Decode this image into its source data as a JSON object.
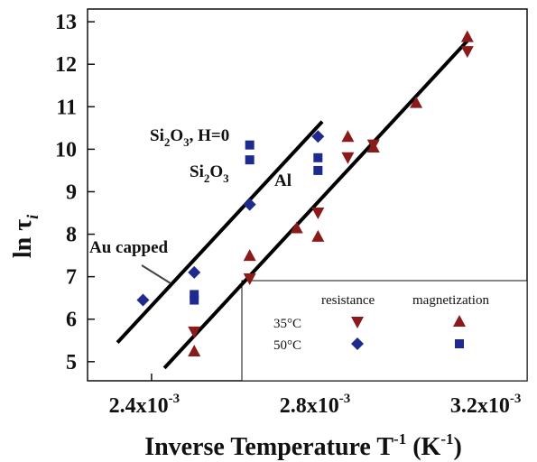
{
  "chart_data": {
    "type": "scatter",
    "xlabel": "Inverse Temperature T",
    "xlabel_sup": "-1",
    "xlabel_unit": "(K",
    "xlabel_unit_sup": "-1",
    "xlabel_unit_close": ")",
    "ylabel": "ln τ",
    "ylabel_sub": "i",
    "xlim": [
      0.00225,
      0.00328
    ],
    "ylim": [
      4.55,
      13.3
    ],
    "x_ticks": [
      {
        "value": 0.0024,
        "mantissa": "2.4x10",
        "exp": "-3"
      },
      {
        "value": 0.0028,
        "mantissa": "2.8x10",
        "exp": "-3"
      },
      {
        "value": 0.0032,
        "mantissa": "3.2x10",
        "exp": "-3"
      }
    ],
    "y_ticks": [
      5,
      6,
      7,
      8,
      9,
      10,
      11,
      12,
      13
    ],
    "colors": {
      "red": "#8b1a1a",
      "blue": "#1f2a8f"
    },
    "series": [
      {
        "marker": "triangle-down",
        "color": "red",
        "points": [
          [
            0.0025,
            5.7
          ],
          [
            0.00263,
            6.95
          ],
          [
            0.00279,
            8.5
          ],
          [
            0.00286,
            9.8
          ],
          [
            0.00292,
            10.1
          ],
          [
            0.00314,
            12.3
          ]
        ]
      },
      {
        "marker": "triangle-up",
        "color": "red",
        "points": [
          [
            0.0025,
            5.25
          ],
          [
            0.00263,
            7.5
          ],
          [
            0.00274,
            8.15
          ],
          [
            0.00279,
            7.95
          ],
          [
            0.00286,
            10.3
          ],
          [
            0.00292,
            10.05
          ],
          [
            0.00302,
            11.1
          ],
          [
            0.00314,
            12.65
          ]
        ]
      },
      {
        "marker": "diamond",
        "color": "blue",
        "points": [
          [
            0.00238,
            6.45
          ],
          [
            0.0025,
            7.1
          ],
          [
            0.00263,
            8.7
          ],
          [
            0.00279,
            10.3
          ]
        ]
      },
      {
        "marker": "square",
        "color": "blue",
        "points": [
          [
            0.0025,
            6.58
          ],
          [
            0.0025,
            6.45
          ],
          [
            0.00263,
            10.1
          ],
          [
            0.00263,
            9.75
          ],
          [
            0.00279,
            9.8
          ],
          [
            0.00279,
            9.5
          ]
        ]
      }
    ],
    "fit_lines": [
      {
        "x": [
          0.00232,
          0.0028
        ],
        "y": [
          5.45,
          10.65
        ]
      },
      {
        "x": [
          0.00243,
          0.00314
        ],
        "y": [
          4.85,
          12.55
        ]
      }
    ],
    "annotations": {
      "si2o3_h0": {
        "p1": "Si",
        "s1": "2",
        "p2": "O",
        "s2": "3",
        "p3": ", H=0"
      },
      "si2o3": {
        "p1": "Si",
        "s1": "2",
        "p2": "O",
        "s2": "3"
      },
      "al": "Al",
      "au_capped": "Au capped"
    },
    "legend": {
      "col_headers": [
        "resistance",
        "magnetization"
      ],
      "rows": [
        "35°C",
        "50°C"
      ]
    }
  }
}
